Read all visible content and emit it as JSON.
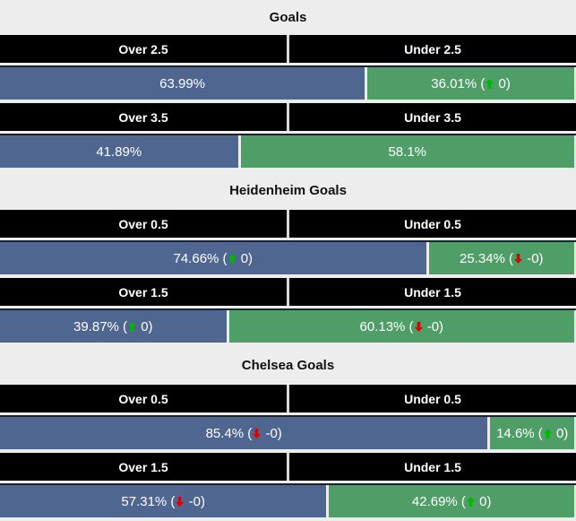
{
  "chart_data": {
    "type": "bar",
    "orientation": "horizontal-paired-percentage",
    "legend_position": "none",
    "grid": false,
    "xlim": [
      0,
      100
    ],
    "sections": [
      {
        "title": "Goals",
        "rows": [
          {
            "over": {
              "label": "Over 2.5",
              "pct": 63.99,
              "display": "63.99%"
            },
            "under": {
              "label": "Under 2.5",
              "pct": 36.01,
              "display": "36.01%",
              "trend": "up",
              "trend_value": "0"
            }
          },
          {
            "over": {
              "label": "Over 3.5",
              "pct": 41.89,
              "display": "41.89%"
            },
            "under": {
              "label": "Under 3.5",
              "pct": 58.1,
              "display": "58.1%"
            }
          }
        ]
      },
      {
        "title": "Heidenheim Goals",
        "rows": [
          {
            "over": {
              "label": "Over 0.5",
              "pct": 74.66,
              "display": "74.66%",
              "trend": "up",
              "trend_value": "0"
            },
            "under": {
              "label": "Under 0.5",
              "pct": 25.34,
              "display": "25.34%",
              "trend": "down",
              "trend_value": "-0"
            }
          },
          {
            "over": {
              "label": "Over 1.5",
              "pct": 39.87,
              "display": "39.87%",
              "trend": "up",
              "trend_value": "0"
            },
            "under": {
              "label": "Under 1.5",
              "pct": 60.13,
              "display": "60.13%",
              "trend": "down",
              "trend_value": "-0"
            }
          }
        ]
      },
      {
        "title": "Chelsea Goals",
        "rows": [
          {
            "over": {
              "label": "Over 0.5",
              "pct": 85.4,
              "display": "85.4%",
              "trend": "down",
              "trend_value": "-0"
            },
            "under": {
              "label": "Under 0.5",
              "pct": 14.6,
              "display": "14.6%",
              "trend": "up",
              "trend_value": "0"
            }
          },
          {
            "over": {
              "label": "Over 1.5",
              "pct": 57.31,
              "display": "57.31%",
              "trend": "down",
              "trend_value": "-0"
            },
            "under": {
              "label": "Under 1.5",
              "pct": 42.69,
              "display": "42.69%",
              "trend": "up",
              "trend_value": "0"
            }
          }
        ]
      }
    ]
  },
  "colors": {
    "background": "#ededed",
    "header_bg": "#000000",
    "header_text": "#ffffff",
    "header_divider": "#d9d9d9",
    "over_bar": "#4f6690",
    "under_bar": "#4f9e68",
    "bar_text": "#ffffff",
    "bar_top_border": "#1b222e",
    "up_arrow": "#00b800",
    "down_arrow": "#e00000",
    "title_text": "#111111"
  }
}
